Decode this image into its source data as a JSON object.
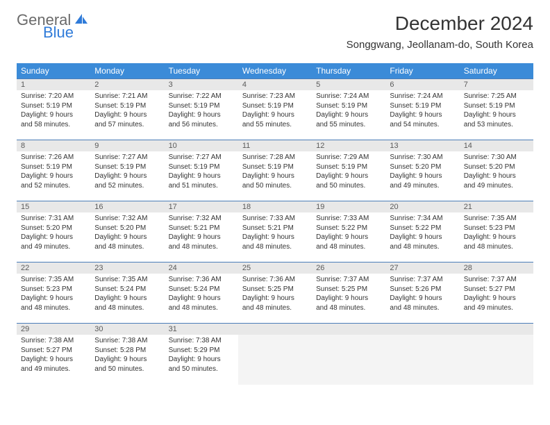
{
  "logo": {
    "top": "General",
    "bottom": "Blue",
    "icon_color": "#2f7bd9"
  },
  "header": {
    "month": "December 2024",
    "location": "Songgwang, Jeollanam-do, South Korea"
  },
  "style": {
    "header_bg": "#3b8bd8",
    "header_fg": "#ffffff",
    "day_num_bg": "#e8e8e8",
    "border_color": "#4a7db8",
    "text_color": "#333333"
  },
  "weekdays": [
    "Sunday",
    "Monday",
    "Tuesday",
    "Wednesday",
    "Thursday",
    "Friday",
    "Saturday"
  ],
  "days": [
    {
      "n": "1",
      "sunrise": "7:20 AM",
      "sunset": "5:19 PM",
      "dl": "9 hours and 58 minutes."
    },
    {
      "n": "2",
      "sunrise": "7:21 AM",
      "sunset": "5:19 PM",
      "dl": "9 hours and 57 minutes."
    },
    {
      "n": "3",
      "sunrise": "7:22 AM",
      "sunset": "5:19 PM",
      "dl": "9 hours and 56 minutes."
    },
    {
      "n": "4",
      "sunrise": "7:23 AM",
      "sunset": "5:19 PM",
      "dl": "9 hours and 55 minutes."
    },
    {
      "n": "5",
      "sunrise": "7:24 AM",
      "sunset": "5:19 PM",
      "dl": "9 hours and 55 minutes."
    },
    {
      "n": "6",
      "sunrise": "7:24 AM",
      "sunset": "5:19 PM",
      "dl": "9 hours and 54 minutes."
    },
    {
      "n": "7",
      "sunrise": "7:25 AM",
      "sunset": "5:19 PM",
      "dl": "9 hours and 53 minutes."
    },
    {
      "n": "8",
      "sunrise": "7:26 AM",
      "sunset": "5:19 PM",
      "dl": "9 hours and 52 minutes."
    },
    {
      "n": "9",
      "sunrise": "7:27 AM",
      "sunset": "5:19 PM",
      "dl": "9 hours and 52 minutes."
    },
    {
      "n": "10",
      "sunrise": "7:27 AM",
      "sunset": "5:19 PM",
      "dl": "9 hours and 51 minutes."
    },
    {
      "n": "11",
      "sunrise": "7:28 AM",
      "sunset": "5:19 PM",
      "dl": "9 hours and 50 minutes."
    },
    {
      "n": "12",
      "sunrise": "7:29 AM",
      "sunset": "5:19 PM",
      "dl": "9 hours and 50 minutes."
    },
    {
      "n": "13",
      "sunrise": "7:30 AM",
      "sunset": "5:20 PM",
      "dl": "9 hours and 49 minutes."
    },
    {
      "n": "14",
      "sunrise": "7:30 AM",
      "sunset": "5:20 PM",
      "dl": "9 hours and 49 minutes."
    },
    {
      "n": "15",
      "sunrise": "7:31 AM",
      "sunset": "5:20 PM",
      "dl": "9 hours and 49 minutes."
    },
    {
      "n": "16",
      "sunrise": "7:32 AM",
      "sunset": "5:20 PM",
      "dl": "9 hours and 48 minutes."
    },
    {
      "n": "17",
      "sunrise": "7:32 AM",
      "sunset": "5:21 PM",
      "dl": "9 hours and 48 minutes."
    },
    {
      "n": "18",
      "sunrise": "7:33 AM",
      "sunset": "5:21 PM",
      "dl": "9 hours and 48 minutes."
    },
    {
      "n": "19",
      "sunrise": "7:33 AM",
      "sunset": "5:22 PM",
      "dl": "9 hours and 48 minutes."
    },
    {
      "n": "20",
      "sunrise": "7:34 AM",
      "sunset": "5:22 PM",
      "dl": "9 hours and 48 minutes."
    },
    {
      "n": "21",
      "sunrise": "7:35 AM",
      "sunset": "5:23 PM",
      "dl": "9 hours and 48 minutes."
    },
    {
      "n": "22",
      "sunrise": "7:35 AM",
      "sunset": "5:23 PM",
      "dl": "9 hours and 48 minutes."
    },
    {
      "n": "23",
      "sunrise": "7:35 AM",
      "sunset": "5:24 PM",
      "dl": "9 hours and 48 minutes."
    },
    {
      "n": "24",
      "sunrise": "7:36 AM",
      "sunset": "5:24 PM",
      "dl": "9 hours and 48 minutes."
    },
    {
      "n": "25",
      "sunrise": "7:36 AM",
      "sunset": "5:25 PM",
      "dl": "9 hours and 48 minutes."
    },
    {
      "n": "26",
      "sunrise": "7:37 AM",
      "sunset": "5:25 PM",
      "dl": "9 hours and 48 minutes."
    },
    {
      "n": "27",
      "sunrise": "7:37 AM",
      "sunset": "5:26 PM",
      "dl": "9 hours and 48 minutes."
    },
    {
      "n": "28",
      "sunrise": "7:37 AM",
      "sunset": "5:27 PM",
      "dl": "9 hours and 49 minutes."
    },
    {
      "n": "29",
      "sunrise": "7:38 AM",
      "sunset": "5:27 PM",
      "dl": "9 hours and 49 minutes."
    },
    {
      "n": "30",
      "sunrise": "7:38 AM",
      "sunset": "5:28 PM",
      "dl": "9 hours and 50 minutes."
    },
    {
      "n": "31",
      "sunrise": "7:38 AM",
      "sunset": "5:29 PM",
      "dl": "9 hours and 50 minutes."
    }
  ],
  "labels": {
    "sunrise": "Sunrise:",
    "sunset": "Sunset:",
    "daylight": "Daylight:"
  }
}
